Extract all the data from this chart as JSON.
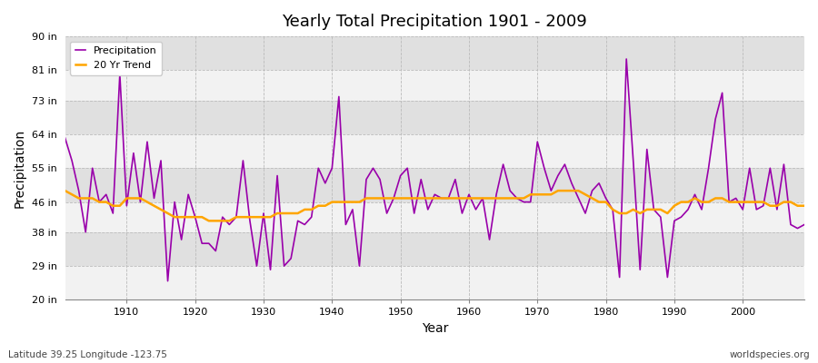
{
  "title": "Yearly Total Precipitation 1901 - 2009",
  "xlabel": "Year",
  "ylabel": "Precipitation",
  "subtitle": "Latitude 39.25 Longitude -123.75",
  "watermark": "worldspecies.org",
  "ylim": [
    20,
    90
  ],
  "yticks": [
    20,
    29,
    38,
    46,
    55,
    64,
    73,
    81,
    90
  ],
  "ytick_labels": [
    "20 in",
    "29 in",
    "38 in",
    "46 in",
    "55 in",
    "64 in",
    "73 in",
    "81 in",
    "90 in"
  ],
  "xlim": [
    1901,
    2009
  ],
  "xticks": [
    1910,
    1920,
    1930,
    1940,
    1950,
    1960,
    1970,
    1980,
    1990,
    2000
  ],
  "precip_color": "#9900AA",
  "trend_color": "#FFA500",
  "bg_color": "#FFFFFF",
  "plot_bg_color": "#EBEBEB",
  "band_color_light": "#F2F2F2",
  "band_color_dark": "#E0E0E0",
  "grid_color": "#BBBBBB",
  "years": [
    1901,
    1902,
    1903,
    1904,
    1905,
    1906,
    1907,
    1908,
    1909,
    1910,
    1911,
    1912,
    1913,
    1914,
    1915,
    1916,
    1917,
    1918,
    1919,
    1920,
    1921,
    1922,
    1923,
    1924,
    1925,
    1926,
    1927,
    1928,
    1929,
    1930,
    1931,
    1932,
    1933,
    1934,
    1935,
    1936,
    1937,
    1938,
    1939,
    1940,
    1941,
    1942,
    1943,
    1944,
    1945,
    1946,
    1947,
    1948,
    1949,
    1950,
    1951,
    1952,
    1953,
    1954,
    1955,
    1956,
    1957,
    1958,
    1959,
    1960,
    1961,
    1962,
    1963,
    1964,
    1965,
    1966,
    1967,
    1968,
    1969,
    1970,
    1971,
    1972,
    1973,
    1974,
    1975,
    1976,
    1977,
    1978,
    1979,
    1980,
    1981,
    1982,
    1983,
    1984,
    1985,
    1986,
    1987,
    1988,
    1989,
    1990,
    1991,
    1992,
    1993,
    1994,
    1995,
    1996,
    1997,
    1998,
    1999,
    2000,
    2001,
    2002,
    2003,
    2004,
    2005,
    2006,
    2007,
    2008,
    2009
  ],
  "precip": [
    63,
    57,
    49,
    38,
    55,
    46,
    48,
    43,
    80,
    45,
    59,
    46,
    62,
    47,
    57,
    25,
    46,
    36,
    48,
    42,
    35,
    35,
    33,
    42,
    40,
    42,
    57,
    41,
    29,
    43,
    28,
    53,
    29,
    31,
    41,
    40,
    42,
    55,
    51,
    55,
    74,
    40,
    44,
    29,
    52,
    55,
    52,
    43,
    47,
    53,
    55,
    43,
    52,
    44,
    48,
    47,
    47,
    52,
    43,
    48,
    44,
    47,
    36,
    48,
    56,
    49,
    47,
    46,
    46,
    62,
    55,
    49,
    53,
    56,
    51,
    47,
    43,
    49,
    51,
    47,
    44,
    26,
    84,
    57,
    28,
    60,
    44,
    42,
    26,
    41,
    42,
    44,
    48,
    44,
    55,
    68,
    75,
    46,
    47,
    44,
    55,
    44,
    45,
    55,
    44,
    56,
    40,
    39,
    40
  ],
  "trend": [
    49,
    48,
    47,
    47,
    47,
    46,
    46,
    45,
    45,
    47,
    47,
    47,
    46,
    45,
    44,
    43,
    42,
    42,
    42,
    42,
    42,
    41,
    41,
    41,
    41,
    42,
    42,
    42,
    42,
    42,
    42,
    43,
    43,
    43,
    43,
    44,
    44,
    45,
    45,
    46,
    46,
    46,
    46,
    46,
    47,
    47,
    47,
    47,
    47,
    47,
    47,
    47,
    47,
    47,
    47,
    47,
    47,
    47,
    47,
    47,
    47,
    47,
    47,
    47,
    47,
    47,
    47,
    47,
    48,
    48,
    48,
    48,
    49,
    49,
    49,
    49,
    48,
    47,
    46,
    46,
    44,
    43,
    43,
    44,
    43,
    44,
    44,
    44,
    43,
    45,
    46,
    46,
    47,
    46,
    46,
    47,
    47,
    46,
    46,
    46,
    46,
    46,
    46,
    45,
    45,
    46,
    46,
    45,
    45
  ]
}
